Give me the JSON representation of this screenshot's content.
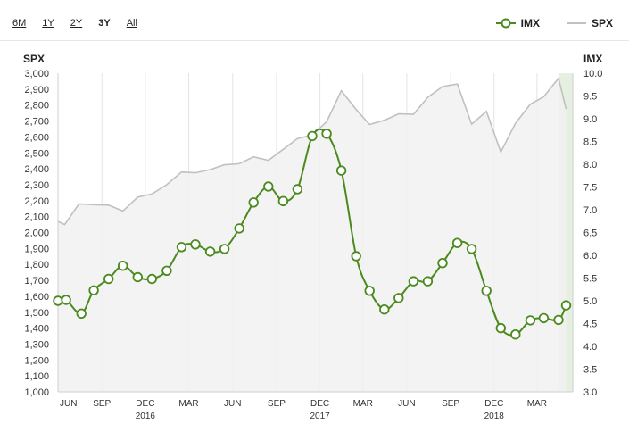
{
  "range_selector": {
    "buttons": [
      {
        "label": "6M",
        "active": false
      },
      {
        "label": "1Y",
        "active": false
      },
      {
        "label": "2Y",
        "active": false
      },
      {
        "label": "3Y",
        "active": true
      },
      {
        "label": "All",
        "active": false
      }
    ]
  },
  "legend": {
    "imx": "IMX",
    "spx": "SPX"
  },
  "colors": {
    "imx": "#4a8a1f",
    "spx": "#c0c0c0",
    "spx_fill": "#f1f1f1",
    "highlight": "#e6f0e0",
    "grid": "#e4e4e4"
  },
  "chart_data": {
    "type": "line",
    "left_axis": {
      "label": "SPX",
      "min": 1000,
      "max": 3000,
      "step": 100,
      "ticks": [
        "1,000",
        "1,100",
        "1,200",
        "1,300",
        "1,400",
        "1,500",
        "1,600",
        "1,700",
        "1,800",
        "1,900",
        "2,000",
        "2,100",
        "2,200",
        "2,300",
        "2,400",
        "2,500",
        "2,600",
        "2,700",
        "2,800",
        "2,900",
        "3,000"
      ]
    },
    "right_axis": {
      "label": "IMX",
      "min": 3.0,
      "max": 10.0,
      "step": 0.5,
      "ticks": [
        "3.0",
        "3.5",
        "4.0",
        "4.5",
        "5.0",
        "5.5",
        "6.0",
        "6.5",
        "7.0",
        "7.5",
        "8.0",
        "8.5",
        "9.0",
        "9.5",
        "10.0"
      ]
    },
    "x_axis": {
      "start": "2015-06-01",
      "end": "2018-05-15",
      "ticks": [
        {
          "label": "JUN",
          "date": "2015-06-01"
        },
        {
          "label": "SEP",
          "date": "2015-09-01"
        },
        {
          "label": "DEC",
          "year": "2016",
          "date": "2015-12-01"
        },
        {
          "label": "MAR",
          "date": "2016-03-01"
        },
        {
          "label": "JUN",
          "date": "2016-06-01"
        },
        {
          "label": "SEP",
          "date": "2016-09-01"
        },
        {
          "label": "DEC",
          "year": "2017",
          "date": "2016-12-01"
        },
        {
          "label": "MAR",
          "date": "2017-03-01"
        },
        {
          "label": "JUN",
          "date": "2017-06-01"
        },
        {
          "label": "SEP",
          "date": "2017-09-01"
        },
        {
          "label": "DEC",
          "year": "2018",
          "date": "2017-12-01"
        },
        {
          "label": "MAR",
          "date": "2018-03-01"
        }
      ]
    },
    "highlight_range": [
      "2018-04-15",
      "2018-05-15"
    ],
    "grid": true,
    "legend_position": "top-right",
    "series": [
      {
        "name": "IMX",
        "axis": "right",
        "type": "line-markers",
        "points": [
          [
            "2015-06-01",
            5.0
          ],
          [
            "2015-06-18",
            5.02
          ],
          [
            "2015-07-20",
            4.72
          ],
          [
            "2015-08-15",
            5.23
          ],
          [
            "2015-09-15",
            5.48
          ],
          [
            "2015-10-15",
            5.77
          ],
          [
            "2015-11-15",
            5.52
          ],
          [
            "2015-12-15",
            5.48
          ],
          [
            "2016-01-15",
            5.66
          ],
          [
            "2016-02-15",
            6.18
          ],
          [
            "2016-03-15",
            6.24
          ],
          [
            "2016-04-15",
            6.08
          ],
          [
            "2016-05-15",
            6.14
          ],
          [
            "2016-06-15",
            6.59
          ],
          [
            "2016-07-15",
            7.16
          ],
          [
            "2016-08-15",
            7.51
          ],
          [
            "2016-09-15",
            7.19
          ],
          [
            "2016-10-15",
            7.45
          ],
          [
            "2016-11-15",
            8.62
          ],
          [
            "2016-12-15",
            8.67
          ],
          [
            "2017-01-15",
            7.86
          ],
          [
            "2017-02-15",
            5.98
          ],
          [
            "2017-03-15",
            5.22
          ],
          [
            "2017-04-15",
            4.81
          ],
          [
            "2017-05-15",
            5.06
          ],
          [
            "2017-06-15",
            5.43
          ],
          [
            "2017-07-15",
            5.43
          ],
          [
            "2017-08-15",
            5.83
          ],
          [
            "2017-09-15",
            6.27
          ],
          [
            "2017-10-15",
            6.14
          ],
          [
            "2017-11-15",
            5.22
          ],
          [
            "2017-12-15",
            4.4
          ],
          [
            "2018-01-15",
            4.26
          ],
          [
            "2018-02-15",
            4.57
          ],
          [
            "2018-03-15",
            4.62
          ],
          [
            "2018-04-15",
            4.58
          ],
          [
            "2018-05-01",
            4.9
          ]
        ]
      },
      {
        "name": "SPX",
        "axis": "left",
        "type": "area",
        "points": [
          [
            "2015-06-01",
            2070
          ],
          [
            "2015-06-15",
            2050
          ],
          [
            "2015-07-15",
            2180
          ],
          [
            "2015-08-15",
            2175
          ],
          [
            "2015-09-15",
            2172
          ],
          [
            "2015-10-15",
            2135
          ],
          [
            "2015-11-15",
            2222
          ],
          [
            "2015-12-15",
            2242
          ],
          [
            "2016-01-15",
            2300
          ],
          [
            "2016-02-15",
            2380
          ],
          [
            "2016-03-15",
            2375
          ],
          [
            "2016-04-15",
            2395
          ],
          [
            "2016-05-15",
            2425
          ],
          [
            "2016-06-15",
            2432
          ],
          [
            "2016-07-15",
            2475
          ],
          [
            "2016-08-15",
            2453
          ],
          [
            "2016-09-15",
            2522
          ],
          [
            "2016-10-15",
            2590
          ],
          [
            "2016-11-15",
            2612
          ],
          [
            "2016-12-15",
            2695
          ],
          [
            "2017-01-15",
            2890
          ],
          [
            "2017-02-15",
            2772
          ],
          [
            "2017-03-15",
            2678
          ],
          [
            "2017-04-15",
            2705
          ],
          [
            "2017-05-15",
            2745
          ],
          [
            "2017-06-15",
            2742
          ],
          [
            "2017-07-15",
            2848
          ],
          [
            "2017-08-15",
            2916
          ],
          [
            "2017-09-15",
            2932
          ],
          [
            "2017-10-15",
            2680
          ],
          [
            "2017-11-15",
            2760
          ],
          [
            "2017-12-15",
            2505
          ],
          [
            "2018-01-15",
            2686
          ],
          [
            "2018-02-15",
            2805
          ],
          [
            "2018-03-15",
            2852
          ],
          [
            "2018-04-15",
            2968
          ],
          [
            "2018-05-01",
            2775
          ]
        ]
      }
    ]
  }
}
